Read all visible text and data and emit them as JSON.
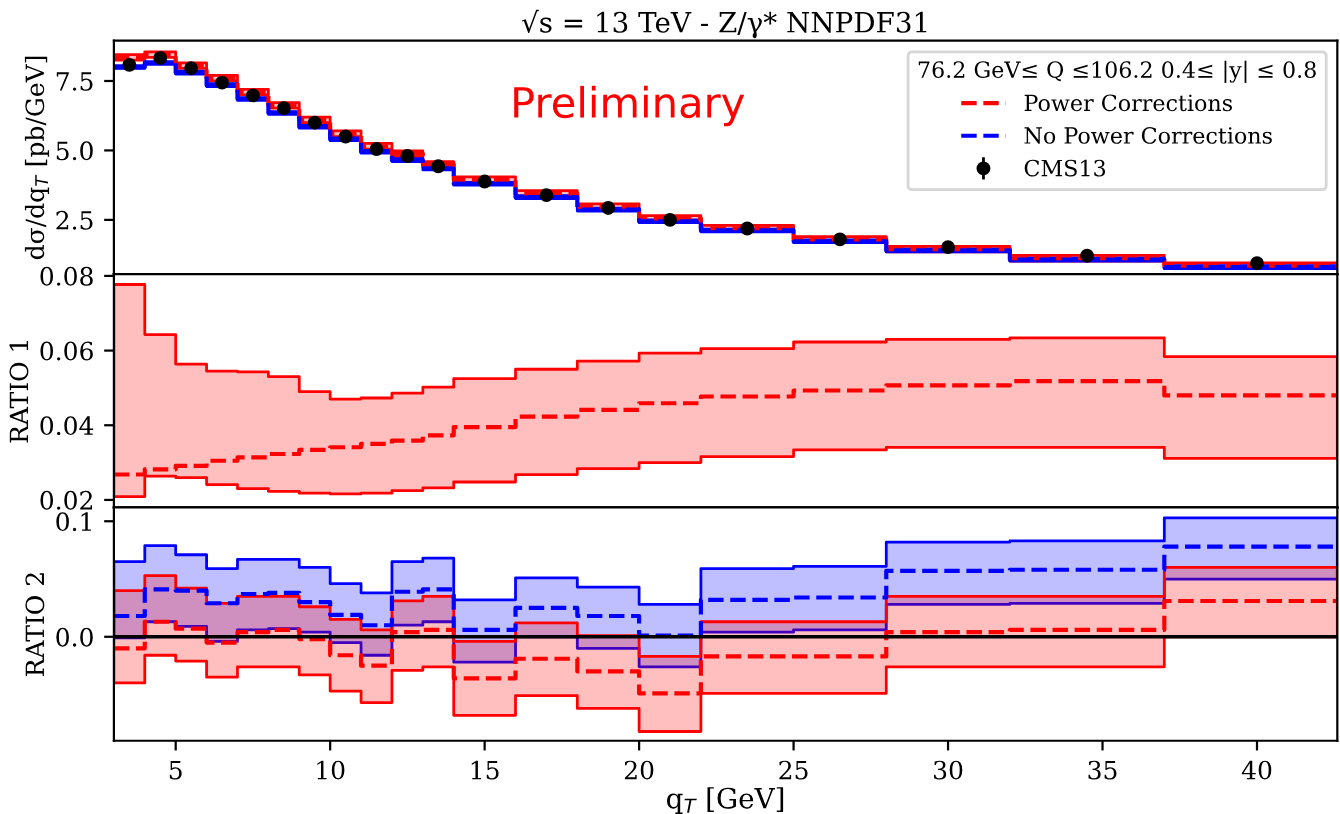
{
  "chart_data": [
    {
      "type": "step",
      "title": "√s = 13 TeV - Z/γ* NNPDF31",
      "ylabel": "dσ/dq$_{T}$ [pb/GeV]",
      "legend_title": "76.2 GeV≤ Q ≤106.2 0.4≤ |y| ≤ 0.8",
      "legend": "top right",
      "annotations": [
        "Preliminary"
      ],
      "tick_labels": "y",
      "xlim": [
        3,
        42.6
      ],
      "ylim": [
        0.55,
        8.95
      ],
      "yticks": [
        {
          "value": 2.5,
          "label": "2.5"
        },
        {
          "value": 5.0,
          "label": "5.0"
        },
        {
          "value": 7.5,
          "label": "7.5"
        }
      ],
      "x": [
        3,
        4,
        5,
        6,
        7,
        8,
        9,
        10,
        11,
        12,
        13,
        14,
        16,
        18,
        20,
        22,
        25,
        28,
        32,
        37,
        42.6
      ],
      "series": [
        {
          "name": "Power Corrections",
          "color": "#ff0000",
          "line_style": "dashed",
          "values": [
            8.35,
            8.45,
            8.05,
            7.6,
            7.1,
            6.62,
            6.1,
            5.6,
            5.15,
            4.88,
            4.5,
            3.95,
            3.45,
            2.98,
            2.55,
            2.2,
            1.8,
            1.45,
            1.12,
            0.85,
            0.85
          ],
          "lower": [
            8.25,
            8.35,
            7.95,
            7.5,
            7.0,
            6.52,
            6.0,
            5.5,
            5.05,
            4.78,
            4.4,
            3.85,
            3.35,
            2.88,
            2.45,
            2.1,
            1.7,
            1.35,
            1.02,
            0.75,
            0.75
          ],
          "upper": [
            8.45,
            8.55,
            8.15,
            7.7,
            7.2,
            6.72,
            6.2,
            5.7,
            5.25,
            4.98,
            4.6,
            4.05,
            3.55,
            3.08,
            2.65,
            2.3,
            1.9,
            1.55,
            1.22,
            0.95,
            0.95
          ]
        },
        {
          "name": "No Power Corrections",
          "color": "#0000ff",
          "line_style": "dashed",
          "values": [
            8.0,
            8.15,
            7.8,
            7.35,
            6.85,
            6.35,
            5.85,
            5.4,
            4.95,
            4.65,
            4.35,
            3.8,
            3.32,
            2.87,
            2.45,
            2.12,
            1.73,
            1.4,
            1.07,
            0.8,
            0.8
          ],
          "lower": [
            7.95,
            8.1,
            7.75,
            7.3,
            6.8,
            6.3,
            5.8,
            5.35,
            4.9,
            4.6,
            4.3,
            3.75,
            3.27,
            2.82,
            2.4,
            2.07,
            1.68,
            1.35,
            1.02,
            0.75,
            0.75
          ],
          "upper": [
            8.05,
            8.2,
            7.85,
            7.4,
            6.9,
            6.4,
            5.9,
            5.45,
            5.0,
            4.7,
            4.4,
            3.85,
            3.37,
            2.92,
            2.5,
            2.17,
            1.78,
            1.45,
            1.12,
            0.85,
            0.85
          ]
        },
        {
          "name": "CMS13",
          "type": "scatter",
          "marker": "circle",
          "color": "#000000",
          "x": [
            3.5,
            4.5,
            5.5,
            6.5,
            7.5,
            8.5,
            9.5,
            10.5,
            11.5,
            12.5,
            13.5,
            15,
            17,
            19,
            21,
            23.5,
            26.5,
            30,
            34.5,
            40
          ],
          "values": [
            8.08,
            8.33,
            7.96,
            7.44,
            6.98,
            6.52,
            6.0,
            5.5,
            5.05,
            4.8,
            4.43,
            3.88,
            3.39,
            2.93,
            2.5,
            2.19,
            1.8,
            1.52,
            1.21,
            0.94
          ],
          "errors": [
            0.15,
            0.15,
            0.15,
            0.12,
            0.12,
            0.1,
            0.1,
            0.08,
            0.08,
            0.08,
            0.08,
            0.06,
            0.06,
            0.05,
            0.05,
            0.05,
            0.04,
            0.04,
            0.04,
            0.03
          ]
        }
      ]
    },
    {
      "type": "step",
      "ylabel": "RATIO 1",
      "tick_labels": "y",
      "xlim": [
        3,
        42.6
      ],
      "ylim": [
        0.018,
        0.0805
      ],
      "yticks": [
        0.02,
        0.04,
        0.06,
        0.08
      ],
      "x": [
        3,
        4,
        5,
        6,
        7,
        8,
        9,
        10,
        11,
        12,
        13,
        14,
        16,
        18,
        20,
        22,
        25,
        28,
        32,
        37,
        42.6
      ],
      "series": [
        {
          "color": "#ff0000",
          "line_style": "dashed",
          "values": [
            0.0268,
            0.0282,
            0.0291,
            0.0305,
            0.0314,
            0.0323,
            0.0334,
            0.0341,
            0.035,
            0.0359,
            0.0373,
            0.0395,
            0.0423,
            0.0441,
            0.0459,
            0.0477,
            0.0493,
            0.0507,
            0.0518,
            0.048,
            0.048
          ],
          "lower": [
            0.0209,
            0.0264,
            0.026,
            0.0241,
            0.023,
            0.0223,
            0.0218,
            0.0216,
            0.0218,
            0.0225,
            0.0232,
            0.0248,
            0.0268,
            0.0284,
            0.03,
            0.0316,
            0.0334,
            0.0341,
            0.0341,
            0.0311,
            0.0311
          ],
          "upper": [
            0.0777,
            0.0643,
            0.0564,
            0.0545,
            0.0543,
            0.053,
            0.049,
            0.047,
            0.0473,
            0.0486,
            0.0502,
            0.0525,
            0.055,
            0.0572,
            0.0593,
            0.0605,
            0.0623,
            0.063,
            0.0634,
            0.0584,
            0.0584
          ]
        }
      ]
    },
    {
      "type": "step",
      "ylabel": "RATIO 2",
      "xlabel": "q$_{T}$ [GeV]",
      "xlim": [
        3,
        42.6
      ],
      "ylim": [
        -0.09,
        0.112
      ],
      "xticks": [
        5,
        10,
        15,
        20,
        25,
        30,
        35,
        40
      ],
      "yticks": [
        {
          "value": 0.0,
          "label": "0.0"
        },
        0.1
      ],
      "ref_lines": [
        {
          "axis": "y",
          "value": 0,
          "color": "#000000"
        }
      ],
      "x": [
        3,
        4,
        5,
        6,
        7,
        8,
        9,
        10,
        11,
        12,
        13,
        14,
        16,
        18,
        20,
        22,
        25,
        28,
        32,
        37,
        42.6
      ],
      "series": [
        {
          "color": "#0000ff",
          "line_style": "dashed",
          "values": [
            0.018,
            0.041,
            0.04,
            0.029,
            0.037,
            0.038,
            0.03,
            0.019,
            0.01,
            0.039,
            0.041,
            0.006,
            0.025,
            0.018,
            0.001,
            0.032,
            0.034,
            0.057,
            0.058,
            0.078,
            0.078
          ],
          "lower": [
            -0.001,
            0.013,
            0.009,
            -0.004,
            0.006,
            0.007,
            0.004,
            -0.005,
            -0.016,
            0.01,
            0.013,
            -0.022,
            0.0,
            -0.01,
            -0.026,
            0.004,
            0.006,
            0.028,
            0.029,
            0.05,
            0.05
          ],
          "upper": [
            0.065,
            0.079,
            0.071,
            0.059,
            0.067,
            0.067,
            0.06,
            0.046,
            0.038,
            0.065,
            0.068,
            0.032,
            0.051,
            0.043,
            0.028,
            0.059,
            0.061,
            0.082,
            0.083,
            0.103,
            0.103
          ]
        },
        {
          "color": "#ff0000",
          "line_style": "dashed",
          "values": [
            -0.01,
            0.013,
            0.007,
            -0.005,
            0.004,
            0.006,
            -0.002,
            -0.016,
            -0.025,
            0.004,
            0.006,
            -0.036,
            -0.019,
            -0.03,
            -0.049,
            -0.017,
            -0.017,
            0.004,
            0.006,
            0.031,
            0.031
          ],
          "lower": [
            -0.04,
            -0.016,
            -0.021,
            -0.035,
            -0.026,
            -0.026,
            -0.033,
            -0.047,
            -0.057,
            -0.029,
            -0.026,
            -0.068,
            -0.051,
            -0.062,
            -0.082,
            -0.049,
            -0.049,
            -0.026,
            -0.026,
            0.0,
            0.0
          ],
          "upper": [
            0.04,
            0.053,
            0.042,
            0.029,
            0.035,
            0.035,
            0.026,
            0.015,
            0.006,
            0.031,
            0.035,
            -0.004,
            0.012,
            0.001,
            -0.017,
            0.013,
            0.013,
            0.035,
            0.035,
            0.06,
            0.06
          ]
        }
      ]
    }
  ]
}
